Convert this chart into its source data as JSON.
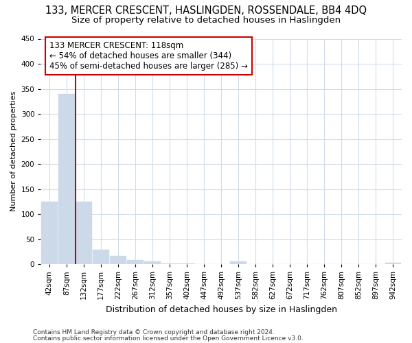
{
  "title1": "133, MERCER CRESCENT, HASLINGDEN, ROSSENDALE, BB4 4DQ",
  "title2": "Size of property relative to detached houses in Haslingden",
  "xlabel": "Distribution of detached houses by size in Haslingden",
  "ylabel": "Number of detached properties",
  "bar_color": "#ccd9e8",
  "bar_edge_color": "#ccd9e8",
  "categories": [
    "42sqm",
    "87sqm",
    "132sqm",
    "177sqm",
    "222sqm",
    "267sqm",
    "312sqm",
    "357sqm",
    "402sqm",
    "447sqm",
    "492sqm",
    "537sqm",
    "582sqm",
    "627sqm",
    "672sqm",
    "717sqm",
    "762sqm",
    "807sqm",
    "852sqm",
    "897sqm",
    "942sqm"
  ],
  "values": [
    124,
    340,
    124,
    29,
    16,
    8,
    5,
    2,
    2,
    0,
    0,
    5,
    0,
    0,
    0,
    0,
    0,
    0,
    0,
    0,
    3
  ],
  "ylim": [
    0,
    450
  ],
  "yticks": [
    0,
    50,
    100,
    150,
    200,
    250,
    300,
    350,
    400,
    450
  ],
  "property_line_bar_index": 2,
  "annotation_line1": "133 MERCER CRESCENT: 118sqm",
  "annotation_line2": "← 54% of detached houses are smaller (344)",
  "annotation_line3": "45% of semi-detached houses are larger (285) →",
  "annotation_box_color": "#ffffff",
  "annotation_box_edge_color": "#cc0000",
  "property_line_color": "#cc0000",
  "footer1": "Contains HM Land Registry data © Crown copyright and database right 2024.",
  "footer2": "Contains public sector information licensed under the Open Government Licence v3.0.",
  "bg_color": "#ffffff",
  "grid_color": "#d0dce8",
  "title1_fontsize": 10.5,
  "title2_fontsize": 9.5,
  "ylabel_fontsize": 8,
  "xlabel_fontsize": 9,
  "tick_fontsize": 7.5,
  "footer_fontsize": 6.5,
  "annotation_fontsize": 8.5
}
